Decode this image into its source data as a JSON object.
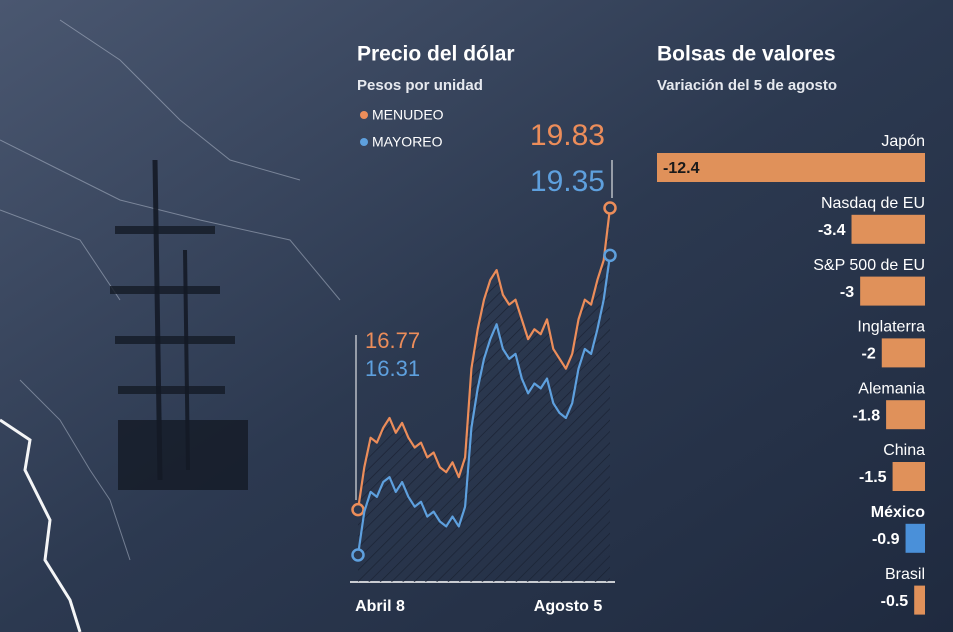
{
  "chart_data": [
    {
      "type": "line",
      "title": "Precio del dólar",
      "subtitle": "Pesos por unidad",
      "categories": [
        "Abril 8",
        null,
        null,
        null,
        null,
        null,
        null,
        null,
        null,
        null,
        null,
        null,
        null,
        null,
        null,
        null,
        null,
        null,
        null,
        null,
        null,
        null,
        null,
        null,
        null,
        null,
        null,
        null,
        null,
        null,
        null,
        null,
        null,
        null,
        null,
        null,
        null,
        null,
        null,
        null,
        "Agosto 5"
      ],
      "series": [
        {
          "name": "MENUDEO",
          "color": "#ec8d5a",
          "values": [
            16.77,
            17.2,
            17.5,
            17.45,
            17.6,
            17.7,
            17.55,
            17.65,
            17.5,
            17.4,
            17.45,
            17.3,
            17.35,
            17.2,
            17.15,
            17.25,
            17.1,
            17.3,
            18.2,
            18.6,
            18.9,
            19.1,
            19.2,
            18.95,
            18.85,
            18.9,
            18.7,
            18.5,
            18.6,
            18.55,
            18.7,
            18.4,
            18.3,
            18.2,
            18.35,
            18.7,
            18.9,
            18.85,
            19.1,
            19.3,
            19.83
          ]
        },
        {
          "name": "MAYOREO",
          "color": "#5ea0de",
          "values": [
            16.31,
            16.75,
            16.95,
            16.9,
            17.05,
            17.1,
            16.95,
            17.05,
            16.9,
            16.8,
            16.85,
            16.7,
            16.75,
            16.65,
            16.6,
            16.7,
            16.6,
            16.8,
            17.6,
            18.0,
            18.3,
            18.5,
            18.65,
            18.4,
            18.3,
            18.35,
            18.1,
            17.95,
            18.05,
            18.0,
            18.1,
            17.85,
            17.75,
            17.7,
            17.85,
            18.2,
            18.4,
            18.35,
            18.6,
            18.9,
            19.35
          ]
        }
      ]
    },
    {
      "type": "hbar",
      "title": "Bolsas de valores",
      "subtitle": "Variación del 5 de agosto",
      "categories": [
        "Japón",
        "Nasdaq de EU",
        "S&P 500 de EU",
        "Inglaterra",
        "Alemania",
        "China",
        "México",
        "Brasil"
      ],
      "values": [
        -12.4,
        -3.4,
        -3.0,
        -2.0,
        -1.8,
        -1.5,
        -0.9,
        -0.5
      ],
      "colors": [
        "#e0915a",
        "#e0915a",
        "#e0915a",
        "#e0915a",
        "#e0915a",
        "#e0915a",
        "#4a90d9",
        "#e0915a"
      ]
    }
  ]
}
